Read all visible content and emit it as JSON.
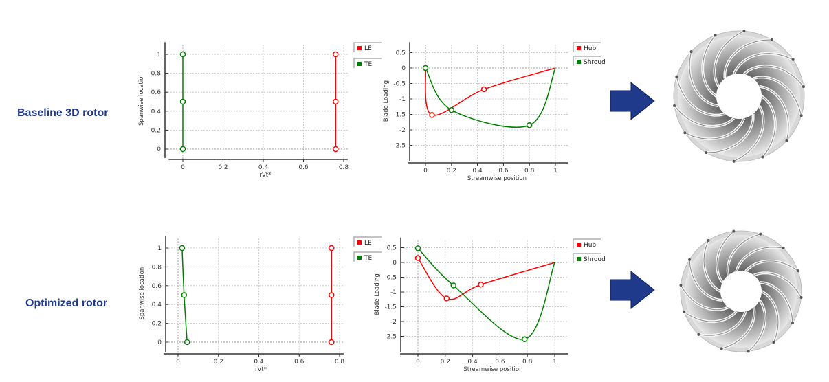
{
  "rows": [
    {
      "label": "Baseline 3D rotor"
    },
    {
      "label": "Optimized rotor"
    }
  ],
  "colors": {
    "red": "#ff0000",
    "green": "#008000",
    "arrow": "#1f3a8a",
    "label": "#1f3a8a"
  },
  "icons": {
    "arrow": "arrow-right-icon",
    "rotor": "impeller-rotor-image"
  },
  "chart_data": [
    {
      "type": "line",
      "row": "Baseline 3D rotor",
      "xlabel": "rVt*",
      "ylabel": "Spanwise location",
      "xlim": [
        -0.05,
        0.82
      ],
      "ylim": [
        -0.1,
        1.1
      ],
      "xticks": [
        0,
        0.2,
        0.4,
        0.6,
        0.8
      ],
      "yticks": [
        0,
        0.2,
        0.4,
        0.6,
        0.8,
        1
      ],
      "grid": true,
      "legend": "right",
      "series": [
        {
          "name": "LE",
          "color": "#ff0000",
          "points": [
            [
              0.76,
              0
            ],
            [
              0.76,
              0.5
            ],
            [
              0.76,
              1
            ]
          ]
        },
        {
          "name": "TE",
          "color": "#008000",
          "points": [
            [
              0,
              0
            ],
            [
              0,
              0.5
            ],
            [
              0,
              1
            ]
          ]
        }
      ]
    },
    {
      "type": "line",
      "row": "Baseline 3D rotor",
      "xlabel": "Streamwise position",
      "ylabel": "Blade Loading",
      "xlim": [
        -0.1,
        1.1
      ],
      "ylim": [
        -3,
        0.75
      ],
      "xticks": [
        0,
        0.2,
        0.4,
        0.6,
        0.8,
        1
      ],
      "yticks": [
        0.5,
        0,
        -0.5,
        -1,
        -1.5,
        -2,
        -2.5
      ],
      "grid": true,
      "legend": "right",
      "series": [
        {
          "name": "Hub",
          "color": "#ff0000",
          "points": [
            [
              0,
              0
            ],
            [
              0.05,
              -1.52
            ],
            [
              0.45,
              -0.69
            ],
            [
              1,
              0
            ]
          ],
          "markers": [
            1,
            2
          ]
        },
        {
          "name": "Shroud",
          "color": "#008000",
          "points": [
            [
              0,
              0
            ],
            [
              0.2,
              -1.36
            ],
            [
              0.8,
              -1.85
            ],
            [
              1,
              0
            ]
          ],
          "markers": [
            0,
            1,
            2
          ]
        }
      ]
    },
    {
      "type": "line",
      "row": "Optimized rotor",
      "xlabel": "rVt*",
      "ylabel": "Spanwise location",
      "xlim": [
        -0.05,
        0.82
      ],
      "ylim": [
        -0.1,
        1.1
      ],
      "xticks": [
        0,
        0.2,
        0.4,
        0.6,
        0.8
      ],
      "yticks": [
        0,
        0.2,
        0.4,
        0.6,
        0.8,
        1
      ],
      "grid": true,
      "legend": "right",
      "series": [
        {
          "name": "LE",
          "color": "#ff0000",
          "points": [
            [
              0.76,
              0
            ],
            [
              0.76,
              0.5
            ],
            [
              0.76,
              1
            ]
          ]
        },
        {
          "name": "TE",
          "color": "#008000",
          "points": [
            [
              0.045,
              0
            ],
            [
              0.03,
              0.5
            ],
            [
              0.02,
              1
            ]
          ]
        }
      ]
    },
    {
      "type": "line",
      "row": "Optimized rotor",
      "xlabel": "Streamwise position",
      "ylabel": "Blade Loading",
      "xlim": [
        -0.1,
        1.1
      ],
      "ylim": [
        -3,
        0.75
      ],
      "xticks": [
        0,
        0.2,
        0.4,
        0.6,
        0.8,
        1
      ],
      "yticks": [
        0.5,
        0,
        -0.5,
        -1,
        -1.5,
        -2,
        -2.5
      ],
      "grid": true,
      "legend": "right",
      "series": [
        {
          "name": "Hub",
          "color": "#ff0000",
          "points": [
            [
              0,
              0.15
            ],
            [
              0.21,
              -1.22
            ],
            [
              0.46,
              -0.75
            ],
            [
              1,
              0
            ]
          ],
          "markers": [
            0,
            1,
            2
          ]
        },
        {
          "name": "Shroud",
          "color": "#008000",
          "points": [
            [
              0,
              0.48
            ],
            [
              0.26,
              -0.78
            ],
            [
              0.78,
              -2.6
            ],
            [
              1,
              0
            ]
          ],
          "markers": [
            0,
            1,
            2
          ]
        }
      ]
    }
  ]
}
